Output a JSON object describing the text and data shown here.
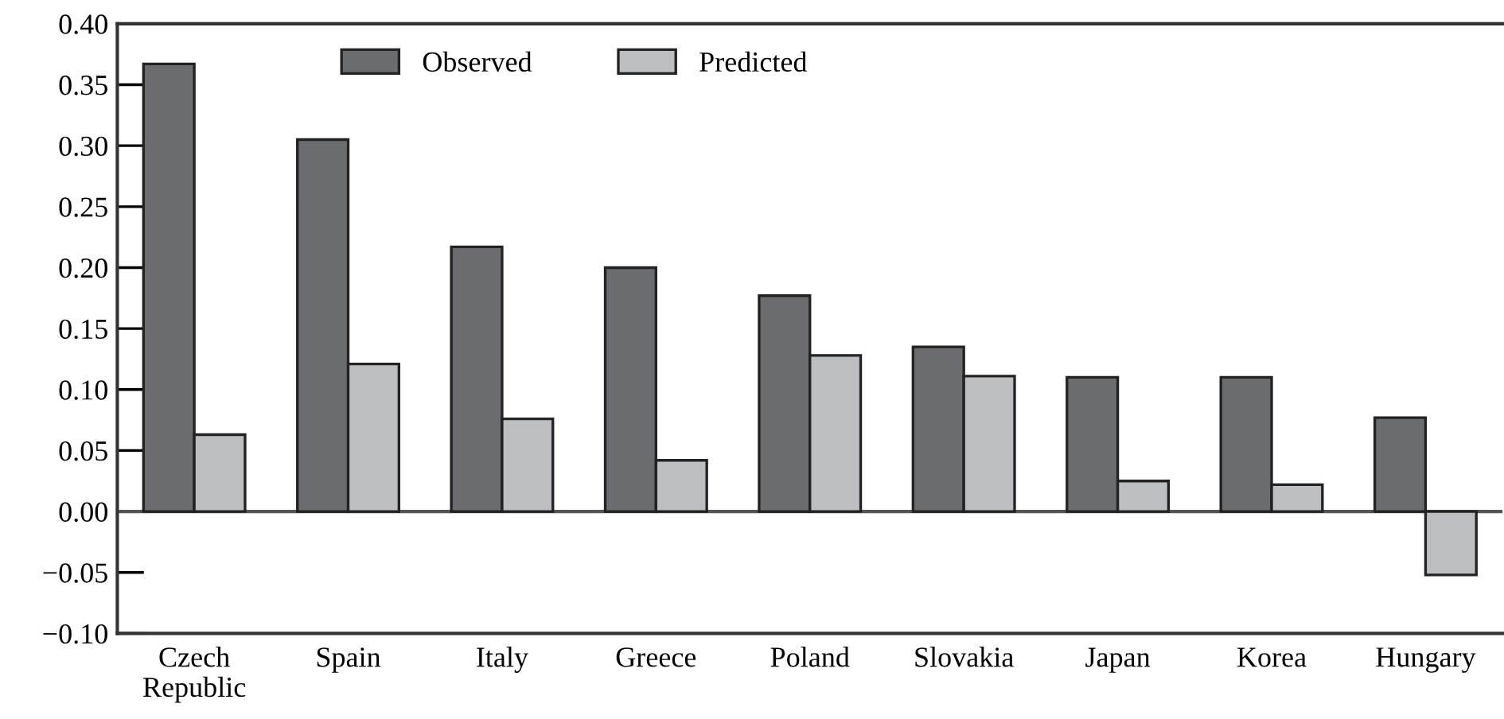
{
  "chart_data": {
    "type": "bar",
    "categories": [
      "Czech\nRepublic",
      "Spain",
      "Italy",
      "Greece",
      "Poland",
      "Slovakia",
      "Japan",
      "Korea",
      "Hungary"
    ],
    "series": [
      {
        "name": "Observed",
        "color": "#6b6c70",
        "values": [
          0.367,
          0.305,
          0.217,
          0.2,
          0.177,
          0.135,
          0.11,
          0.11,
          0.077
        ]
      },
      {
        "name": "Predicted",
        "color": "#bdbec2",
        "values": [
          0.063,
          0.121,
          0.076,
          0.042,
          0.128,
          0.111,
          0.025,
          0.022,
          -0.052
        ]
      }
    ],
    "ylim": [
      -0.1,
      0.4
    ],
    "yticks": [
      {
        "value": -0.1,
        "label": "−0.10"
      },
      {
        "value": -0.05,
        "label": "−0.05"
      },
      {
        "value": 0.0,
        "label": "0.00"
      },
      {
        "value": 0.05,
        "label": "0.05"
      },
      {
        "value": 0.1,
        "label": "0.10"
      },
      {
        "value": 0.15,
        "label": "0.15"
      },
      {
        "value": 0.2,
        "label": "0.20"
      },
      {
        "value": 0.25,
        "label": "0.25"
      },
      {
        "value": 0.3,
        "label": "0.30"
      },
      {
        "value": 0.35,
        "label": "0.35"
      },
      {
        "value": 0.4,
        "label": "0.40"
      }
    ],
    "ref_lines": [
      {
        "axis": "y",
        "value": 0,
        "color": "#555555"
      }
    ],
    "grid": false,
    "legend": "top"
  }
}
